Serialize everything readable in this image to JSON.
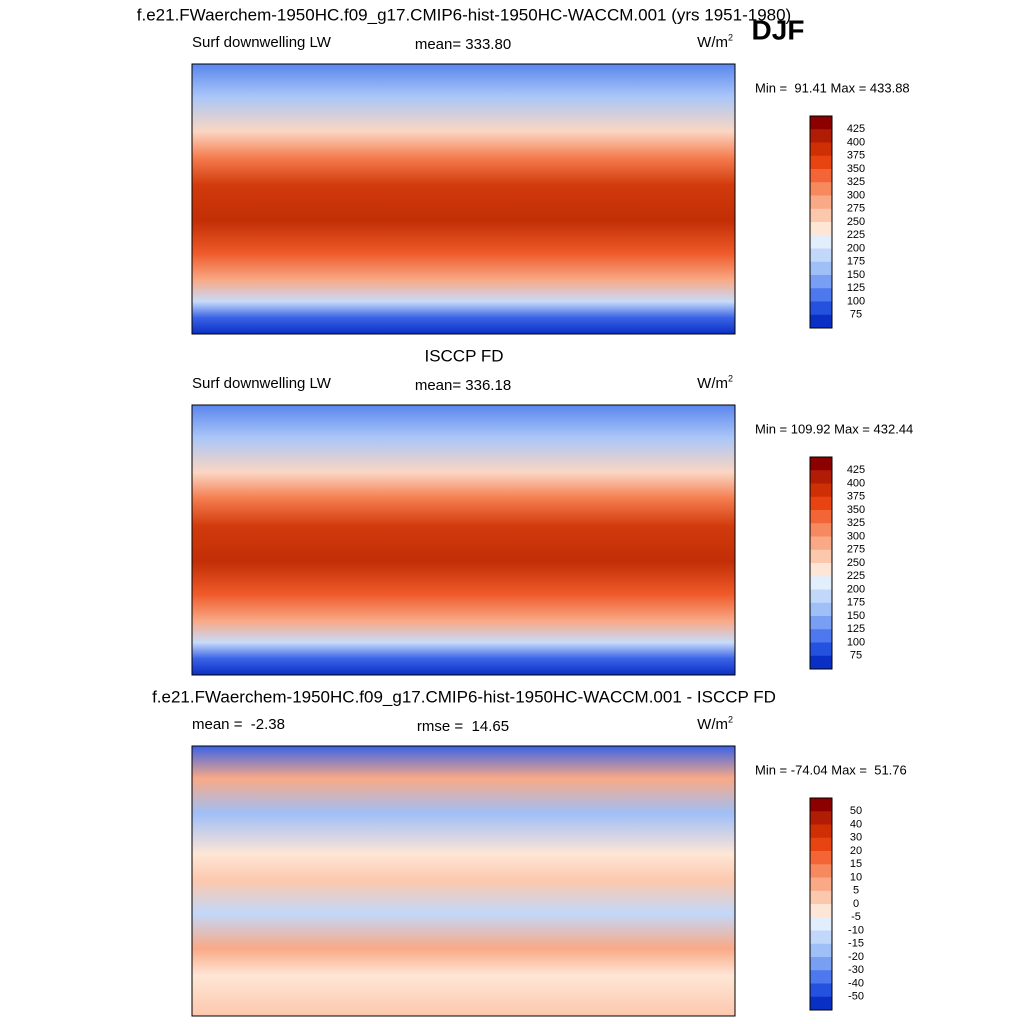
{
  "title": "f.e21.FWaerchem-1950HC.f09_g17.CMIP6-hist-1950HC-WACCM.001 (yrs 1951-1980)",
  "season": "DJF",
  "panels": [
    {
      "left": "Surf downwelling LW",
      "center": "mean= 333.80",
      "units": "W/m",
      "units_power": "2",
      "minmax": "Min =  91.41 Max = 433.88",
      "colorbar": {
        "labels": [
          425,
          400,
          375,
          350,
          325,
          300,
          275,
          250,
          225,
          200,
          175,
          150,
          125,
          100,
          75
        ],
        "colors": [
          "#8c0000",
          "#b01c04",
          "#cf2f05",
          "#e84412",
          "#f36436",
          "#f7895f",
          "#f9a986",
          "#fcc8ad",
          "#fee6d6",
          "#e2eefc",
          "#c2d8fa",
          "#9fbff7",
          "#789ff3",
          "#4d78ee",
          "#2451dd",
          "#0a2fc4",
          "#001a8c"
        ]
      }
    },
    {
      "title": "ISCCP FD",
      "left": "Surf downwelling LW",
      "center": "mean= 336.18",
      "units": "W/m",
      "units_power": "2",
      "minmax": "Min = 109.92 Max = 432.44",
      "colorbar": {
        "labels": [
          425,
          400,
          375,
          350,
          325,
          300,
          275,
          250,
          225,
          200,
          175,
          150,
          125,
          100,
          75
        ],
        "colors": [
          "#8c0000",
          "#b01c04",
          "#cf2f05",
          "#e84412",
          "#f36436",
          "#f7895f",
          "#f9a986",
          "#fcc8ad",
          "#fee6d6",
          "#e2eefc",
          "#c2d8fa",
          "#9fbff7",
          "#789ff3",
          "#4d78ee",
          "#2451dd",
          "#0a2fc4",
          "#001a8c"
        ]
      }
    },
    {
      "title": "f.e21.FWaerchem-1950HC.f09_g17.CMIP6-hist-1950HC-WACCM.001 - ISCCP FD",
      "left": "mean =  -2.38",
      "center": "rmse =  14.65",
      "units": "W/m",
      "units_power": "2",
      "minmax": "Min = -74.04 Max =  51.76",
      "colorbar": {
        "labels": [
          50,
          40,
          30,
          20,
          15,
          10,
          5,
          0,
          -5,
          -10,
          -15,
          -20,
          -30,
          -40,
          -50
        ],
        "colors": [
          "#8c0000",
          "#b01c04",
          "#cf2f05",
          "#e84412",
          "#f36436",
          "#f7895f",
          "#f9a986",
          "#fcc8ad",
          "#fee6d6",
          "#e2eefc",
          "#c2d8fa",
          "#9fbff7",
          "#789ff3",
          "#4d78ee",
          "#2451dd",
          "#0a2fc4",
          "#001a8c"
        ]
      }
    }
  ]
}
